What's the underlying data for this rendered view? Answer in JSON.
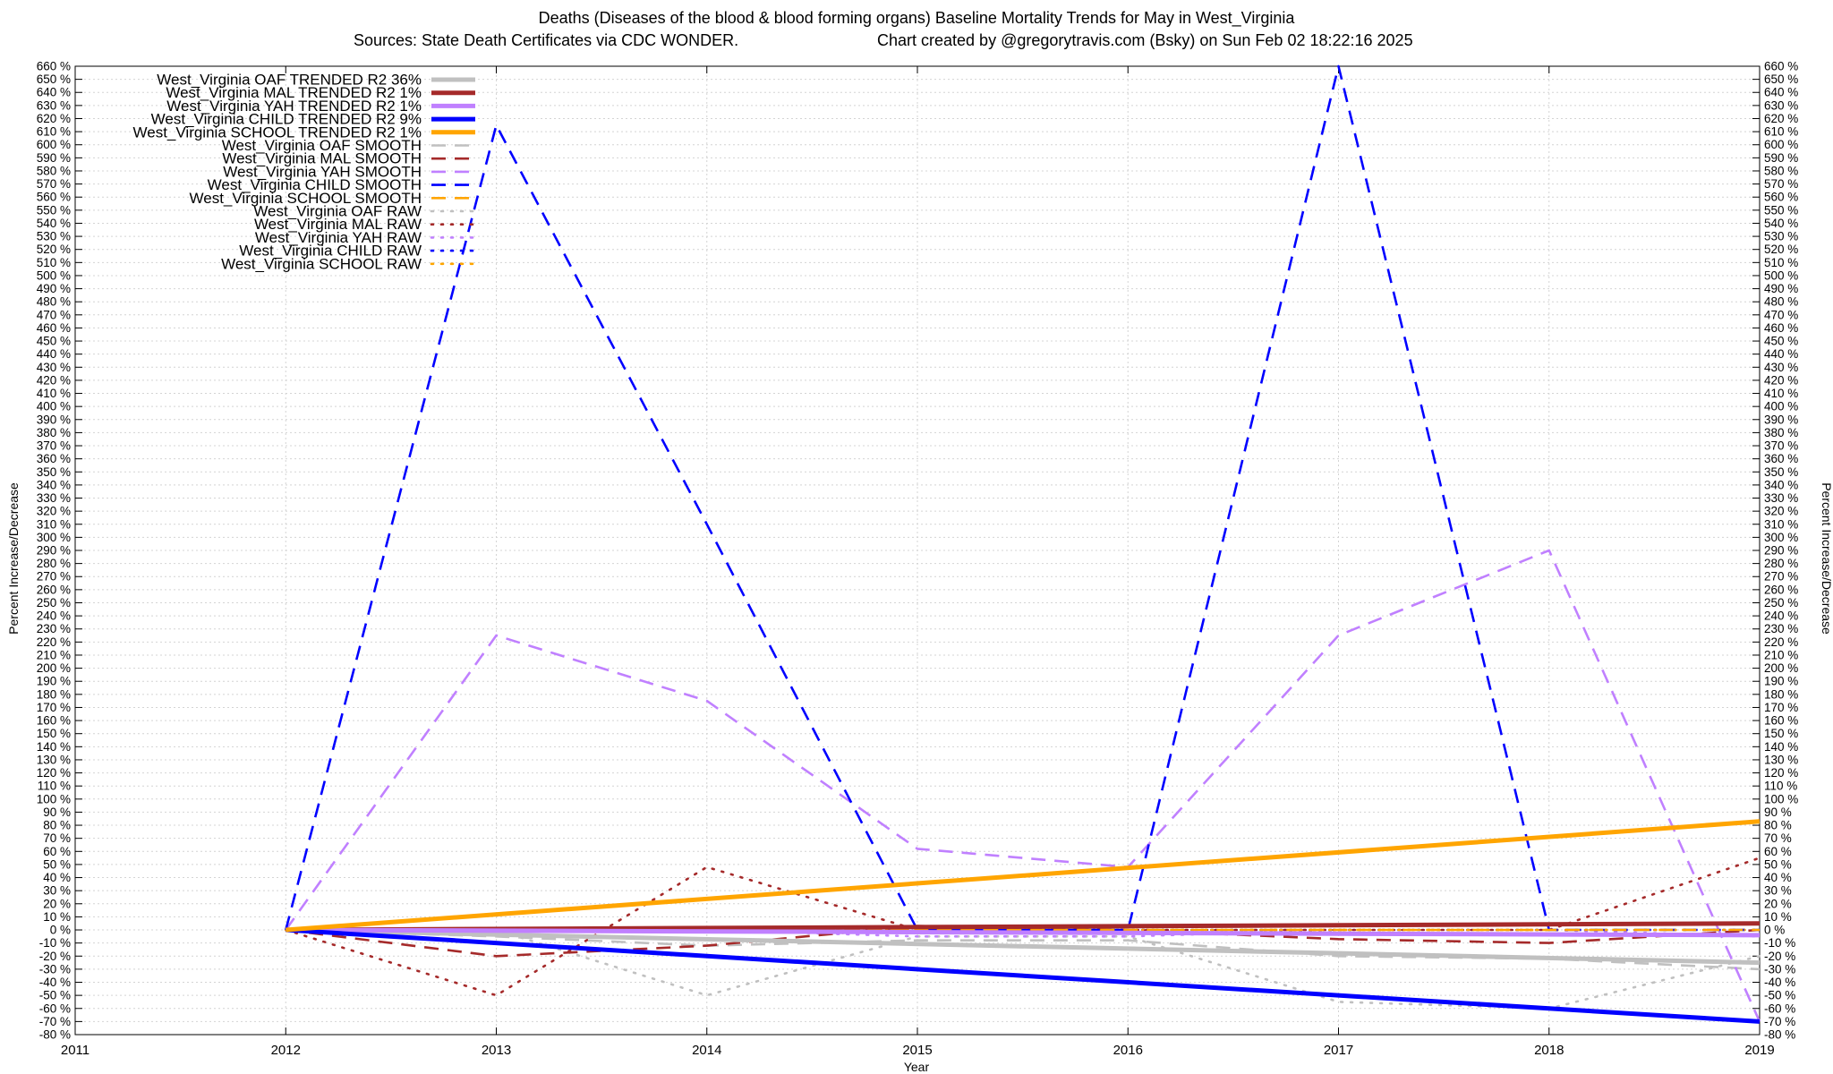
{
  "title_line1": "Deaths (Diseases of the blood & blood forming organs)  Baseline Mortality Trends for May in West_Virginia",
  "title_line2_left": "Sources: State Death Certificates via CDC WONDER.",
  "title_line2_right": "Chart created by @gregorytravis.com (Bsky) on Sun Feb 02 18:22:16 2025",
  "chart_data": {
    "type": "line",
    "xlabel": "Year",
    "ylabel": "Percent Increase/Decrease",
    "xlim": [
      2011,
      2019
    ],
    "ylim": [
      -80,
      660
    ],
    "x_ticks": [
      2011,
      2012,
      2013,
      2014,
      2015,
      2016,
      2017,
      2018,
      2019
    ],
    "y_tick_step": 10,
    "y_tick_suffix": " %",
    "grid": true,
    "legend_position": "top-left",
    "series": [
      {
        "name": "West_Virginia OAF TRENDED R2  36%",
        "color": "#c0c0c0",
        "style": "solid-thick",
        "points": [
          [
            2012,
            0
          ],
          [
            2019,
            -25
          ]
        ]
      },
      {
        "name": "West_Virginia MAL TRENDED R2   1%",
        "color": "#a52a2a",
        "style": "solid-thick",
        "points": [
          [
            2012,
            0
          ],
          [
            2019,
            5
          ]
        ]
      },
      {
        "name": "West_Virginia YAH TRENDED R2   1%",
        "color": "#c080ff",
        "style": "solid-thick",
        "points": [
          [
            2012,
            0
          ],
          [
            2019,
            -4
          ]
        ]
      },
      {
        "name": "West_Virginia CHILD TRENDED R2   9%",
        "color": "#0000ff",
        "style": "solid-thick",
        "points": [
          [
            2012,
            0
          ],
          [
            2019,
            -70
          ]
        ]
      },
      {
        "name": "West_Virginia SCHOOL TRENDED R2   1%",
        "color": "#ffa500",
        "style": "solid-thick",
        "points": [
          [
            2012,
            0
          ],
          [
            2019,
            83
          ]
        ]
      },
      {
        "name": "West_Virginia OAF SMOOTH",
        "color": "#c0c0c0",
        "style": "dashed",
        "points": [
          [
            2012,
            0
          ],
          [
            2013,
            -5
          ],
          [
            2014,
            -12
          ],
          [
            2015,
            -8
          ],
          [
            2016,
            -8
          ],
          [
            2017,
            -20
          ],
          [
            2018,
            -22
          ],
          [
            2019,
            -30
          ]
        ]
      },
      {
        "name": "West_Virginia MAL SMOOTH",
        "color": "#a52a2a",
        "style": "dashed",
        "points": [
          [
            2012,
            0
          ],
          [
            2013,
            -20
          ],
          [
            2014,
            -12
          ],
          [
            2015,
            3
          ],
          [
            2016,
            0
          ],
          [
            2017,
            -7
          ],
          [
            2018,
            -10
          ],
          [
            2019,
            0
          ]
        ]
      },
      {
        "name": "West_Virginia YAH SMOOTH",
        "color": "#c080ff",
        "style": "dashed",
        "points": [
          [
            2012,
            0
          ],
          [
            2013,
            225
          ],
          [
            2014,
            175
          ],
          [
            2015,
            62
          ],
          [
            2016,
            48
          ],
          [
            2017,
            225
          ],
          [
            2018,
            290
          ],
          [
            2019,
            -70
          ]
        ]
      },
      {
        "name": "West_Virginia CHILD SMOOTH",
        "color": "#0000ff",
        "style": "dashed",
        "points": [
          [
            2012,
            0
          ],
          [
            2013,
            615
          ],
          [
            2014,
            310
          ],
          [
            2015,
            0
          ],
          [
            2016,
            0
          ],
          [
            2017,
            660
          ],
          [
            2018,
            0
          ],
          [
            2019,
            0
          ]
        ]
      },
      {
        "name": "West_Virginia SCHOOL SMOOTH",
        "color": "#ffa500",
        "style": "dashed",
        "points": [
          [
            2012,
            0
          ],
          [
            2013,
            0
          ],
          [
            2014,
            0
          ],
          [
            2015,
            0
          ],
          [
            2016,
            0
          ],
          [
            2017,
            0
          ],
          [
            2018,
            0
          ],
          [
            2019,
            0
          ]
        ]
      },
      {
        "name": "West_Virginia OAF RAW",
        "color": "#c0c0c0",
        "style": "dotted",
        "points": [
          [
            2012,
            0
          ],
          [
            2013,
            0
          ],
          [
            2014,
            -50
          ],
          [
            2015,
            -5
          ],
          [
            2016,
            -5
          ],
          [
            2017,
            -55
          ],
          [
            2018,
            -60
          ],
          [
            2019,
            -20
          ]
        ]
      },
      {
        "name": "West_Virginia MAL RAW",
        "color": "#a52a2a",
        "style": "dotted",
        "points": [
          [
            2012,
            0
          ],
          [
            2013,
            -50
          ],
          [
            2014,
            48
          ],
          [
            2015,
            0
          ],
          [
            2016,
            0
          ],
          [
            2017,
            0
          ],
          [
            2018,
            0
          ],
          [
            2019,
            55
          ]
        ]
      },
      {
        "name": "West_Virginia YAH RAW",
        "color": "#c080ff",
        "style": "dotted",
        "points": [
          [
            2012,
            0
          ],
          [
            2013,
            0
          ],
          [
            2014,
            0
          ],
          [
            2015,
            -5
          ],
          [
            2016,
            -5
          ],
          [
            2017,
            0
          ],
          [
            2018,
            0
          ],
          [
            2019,
            -5
          ]
        ]
      },
      {
        "name": "West_Virginia CHILD RAW",
        "color": "#0000ff",
        "style": "dotted",
        "points": [
          [
            2012,
            0
          ],
          [
            2013,
            0
          ],
          [
            2014,
            0
          ],
          [
            2015,
            0
          ],
          [
            2016,
            0
          ],
          [
            2017,
            0
          ],
          [
            2018,
            0
          ],
          [
            2019,
            0
          ]
        ]
      },
      {
        "name": "West_Virginia SCHOOL RAW",
        "color": "#ffa500",
        "style": "dotted",
        "points": [
          [
            2012,
            0
          ],
          [
            2013,
            0
          ],
          [
            2014,
            0
          ],
          [
            2015,
            0
          ],
          [
            2016,
            0
          ],
          [
            2017,
            0
          ],
          [
            2018,
            0
          ],
          [
            2019,
            0
          ]
        ]
      }
    ]
  }
}
